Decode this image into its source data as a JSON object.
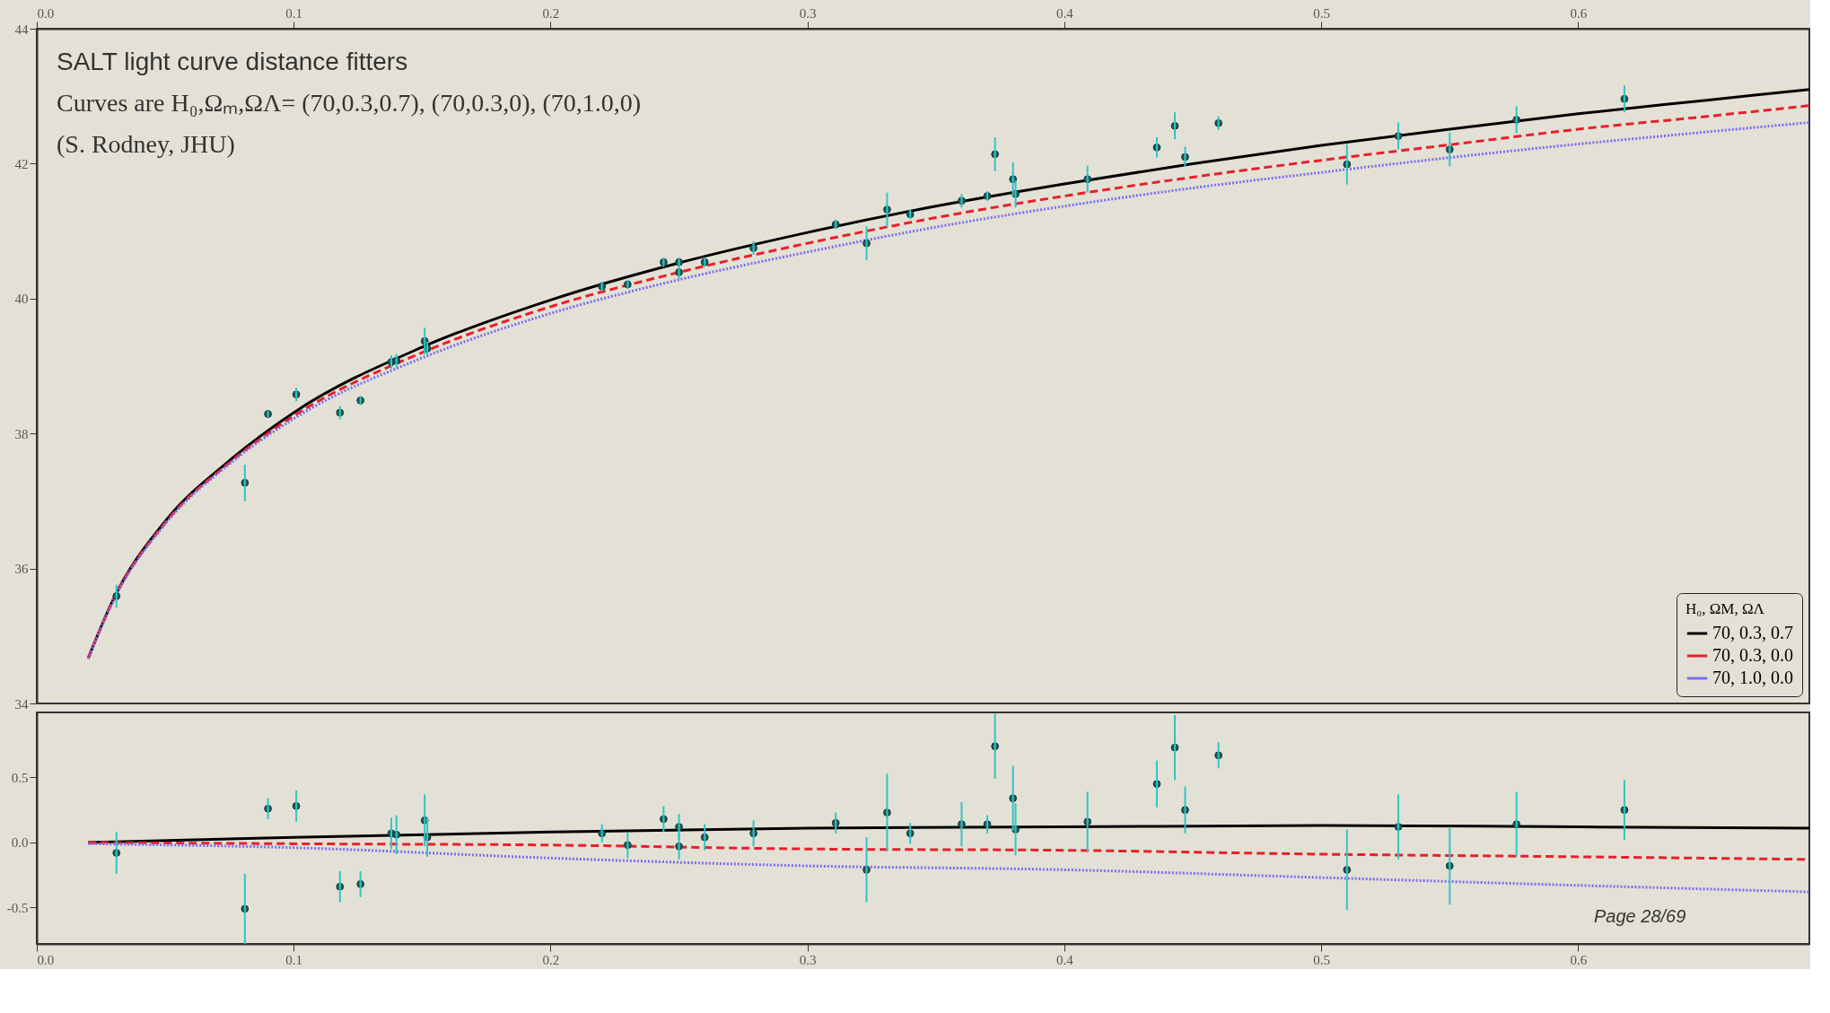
{
  "chart_data": [
    {
      "type": "scatter",
      "title": "SALT light curve distance fitters",
      "subtitle": "Curves are H₀,Ωₘ,ΩΛ= (70,0.3,0.7), (70,0.3,0), (70,1.0,0)",
      "annotations": [
        "(S. Rodney, JHU)"
      ],
      "legend_title": "H₀, ΩM, ΩΛ",
      "legend": "bottom right",
      "grid": false,
      "xlim": [
        0,
        0.69
      ],
      "xticks": [
        {
          "value": 0,
          "label": "0.0"
        },
        0.1,
        0.2,
        0.3,
        0.4,
        0.5,
        0.6
      ],
      "ylim": [
        34,
        44
      ],
      "yticks": [
        34,
        36,
        38,
        40,
        42,
        44
      ],
      "series": [
        {
          "color": "#1d5c5c",
          "marker": "circle",
          "x": [
            0.031,
            0.081,
            0.09,
            0.101,
            0.118,
            0.126,
            0.138,
            0.14,
            0.151,
            0.152,
            0.22,
            0.23,
            0.244,
            0.25,
            0.25,
            0.26,
            0.279,
            0.311,
            0.323,
            0.331,
            0.34,
            0.36,
            0.37,
            0.373,
            0.38,
            0.381,
            0.409,
            0.436,
            0.443,
            0.447,
            0.46,
            0.51,
            0.53,
            0.55,
            0.576,
            0.618
          ],
          "values": [
            35.59,
            37.27,
            38.29,
            38.58,
            38.31,
            38.49,
            39.06,
            39.08,
            39.37,
            39.26,
            40.18,
            40.21,
            40.54,
            40.54,
            40.39,
            40.54,
            40.75,
            41.1,
            40.82,
            41.32,
            41.25,
            41.45,
            41.52,
            42.14,
            41.77,
            41.55,
            41.77,
            42.24,
            42.56,
            42.1,
            42.6,
            41.99,
            42.41,
            42.21,
            42.65,
            42.96
          ],
          "errors": [
            0.17,
            0.27,
            0.05,
            0.1,
            0.1,
            0.07,
            0.1,
            0.1,
            0.2,
            0.1,
            0.07,
            0.07,
            0.07,
            0.07,
            0.1,
            0.07,
            0.1,
            0.07,
            0.25,
            0.25,
            0.07,
            0.1,
            0.07,
            0.25,
            0.25,
            0.2,
            0.2,
            0.15,
            0.2,
            0.15,
            0.1,
            0.3,
            0.2,
            0.25,
            0.2,
            0.2
          ]
        },
        {
          "type": "line",
          "name": "70, 0.3, 0.7",
          "color": "#000000",
          "line_style": "solid",
          "x": [
            0.02,
            0.03,
            0.05,
            0.075,
            0.1,
            0.15,
            0.2,
            0.25,
            0.3,
            0.35,
            0.4,
            0.45,
            0.5,
            0.55,
            0.6,
            0.65,
            0.69
          ],
          "values": [
            34.67,
            35.56,
            36.7,
            37.6,
            38.31,
            39.28,
            39.98,
            40.53,
            40.98,
            41.37,
            41.7,
            42.0,
            42.27,
            42.51,
            42.74,
            42.94,
            43.1
          ]
        },
        {
          "type": "line",
          "name": "70, 0.3, 0.0",
          "color": "#e8202a",
          "line_style": "dashed",
          "x": [
            0.02,
            0.03,
            0.05,
            0.075,
            0.1,
            0.15,
            0.2,
            0.25,
            0.3,
            0.35,
            0.4,
            0.45,
            0.5,
            0.55,
            0.6,
            0.65,
            0.69
          ],
          "values": [
            34.67,
            35.55,
            36.68,
            37.57,
            38.26,
            39.2,
            39.88,
            40.39,
            40.82,
            41.2,
            41.52,
            41.8,
            42.05,
            42.28,
            42.51,
            42.7,
            42.86
          ]
        },
        {
          "type": "line",
          "name": "70, 1.0, 0.0",
          "color": "#7b6cf0",
          "line_style": "dotted",
          "x": [
            0.02,
            0.03,
            0.05,
            0.075,
            0.1,
            0.15,
            0.2,
            0.25,
            0.3,
            0.35,
            0.4,
            0.45,
            0.5,
            0.55,
            0.6,
            0.65,
            0.69
          ],
          "values": [
            34.66,
            35.54,
            36.66,
            37.55,
            38.22,
            39.12,
            39.78,
            40.28,
            40.69,
            41.06,
            41.37,
            41.64,
            41.87,
            42.09,
            42.29,
            42.47,
            42.61
          ]
        }
      ]
    },
    {
      "type": "scatter",
      "annotations": [
        "Page 28/69"
      ],
      "legend": false,
      "grid": false,
      "xlim": [
        0,
        0.69
      ],
      "xticks": [
        {
          "value": 0,
          "label": "0.0"
        },
        0.1,
        0.2,
        0.3,
        0.4,
        0.5,
        0.6
      ],
      "ylim": [
        -0.78,
        1.0
      ],
      "yticks": [
        -0.5,
        {
          "value": 0,
          "label": "0.0"
        },
        0.5
      ],
      "series": [
        {
          "color": "#1d5c5c",
          "marker": "circle",
          "x": [
            0.031,
            0.081,
            0.09,
            0.101,
            0.118,
            0.126,
            0.138,
            0.14,
            0.151,
            0.152,
            0.22,
            0.23,
            0.244,
            0.25,
            0.25,
            0.26,
            0.279,
            0.311,
            0.323,
            0.331,
            0.34,
            0.36,
            0.37,
            0.373,
            0.38,
            0.381,
            0.409,
            0.436,
            0.443,
            0.447,
            0.46,
            0.51,
            0.53,
            0.55,
            0.576,
            0.618
          ],
          "values": [
            -0.08,
            -0.51,
            0.26,
            0.28,
            -0.34,
            -0.32,
            0.07,
            0.06,
            0.17,
            0.04,
            0.07,
            -0.02,
            0.18,
            0.12,
            -0.03,
            0.04,
            0.07,
            0.15,
            -0.21,
            0.23,
            0.07,
            0.14,
            0.14,
            0.74,
            0.34,
            0.1,
            0.16,
            0.45,
            0.73,
            0.25,
            0.67,
            -0.21,
            0.12,
            -0.18,
            0.14,
            0.25
          ],
          "errors": [
            0.16,
            0.27,
            0.08,
            0.12,
            0.12,
            0.1,
            0.12,
            0.15,
            0.2,
            0.15,
            0.07,
            0.1,
            0.1,
            0.1,
            0.1,
            0.1,
            0.1,
            0.08,
            0.25,
            0.3,
            0.08,
            0.17,
            0.07,
            0.25,
            0.25,
            0.2,
            0.23,
            0.18,
            0.25,
            0.18,
            0.1,
            0.31,
            0.25,
            0.3,
            0.25,
            0.23
          ]
        },
        {
          "type": "line",
          "color": "#000000",
          "line_style": "solid",
          "x": [
            0.02,
            0.1,
            0.2,
            0.3,
            0.4,
            0.5,
            0.6,
            0.69
          ],
          "values": [
            0.0,
            0.04,
            0.08,
            0.11,
            0.12,
            0.13,
            0.12,
            0.11
          ]
        },
        {
          "type": "line",
          "color": "#e8202a",
          "line_style": "dashed",
          "x": [
            0.02,
            0.1,
            0.2,
            0.3,
            0.4,
            0.5,
            0.6,
            0.69
          ],
          "values": [
            0.0,
            -0.01,
            -0.02,
            -0.05,
            -0.06,
            -0.09,
            -0.11,
            -0.13
          ]
        },
        {
          "type": "line",
          "color": "#7b6cf0",
          "line_style": "dotted",
          "x": [
            0.02,
            0.1,
            0.2,
            0.3,
            0.4,
            0.5,
            0.6,
            0.69
          ],
          "values": [
            -0.01,
            -0.04,
            -0.12,
            -0.18,
            -0.21,
            -0.27,
            -0.33,
            -0.38
          ]
        }
      ]
    }
  ]
}
